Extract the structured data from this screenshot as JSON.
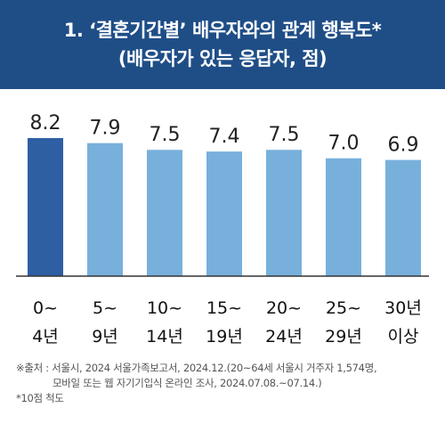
{
  "header": {
    "title_line1": "1. ‘결혼기간별’ 배우자와의 관계 행복도*",
    "title_line2": "(배우자가 있는 응답자, 점)"
  },
  "chart_data": {
    "type": "bar",
    "categories": [
      [
        "0~",
        "4년"
      ],
      [
        "5~",
        "9년"
      ],
      [
        "10~",
        "14년"
      ],
      [
        "15~",
        "19년"
      ],
      [
        "20~",
        "24년"
      ],
      [
        "25~",
        "29년"
      ],
      [
        "30년",
        "이상"
      ]
    ],
    "values": [
      8.2,
      7.9,
      7.5,
      7.4,
      7.5,
      7.0,
      6.9
    ],
    "value_labels": [
      "8.2",
      "7.9",
      "7.5",
      "7.4",
      "7.5",
      "7.0",
      "6.9"
    ],
    "colors": {
      "highlight": "#2e5fa3",
      "default": "#78b0dc",
      "baseline": "#333333"
    },
    "highlight_index": 0
  },
  "footnote": {
    "source_line1": "※출처 : 서울시, 2024 서울가족보고서, 2024.12.(20~64세 서울시 거주자 1,574명,",
    "source_line2": "모바일 또는 웹 자기기입식 온라인 조사, 2024.07.08.~07.14.)",
    "note": "*10점 척도"
  }
}
